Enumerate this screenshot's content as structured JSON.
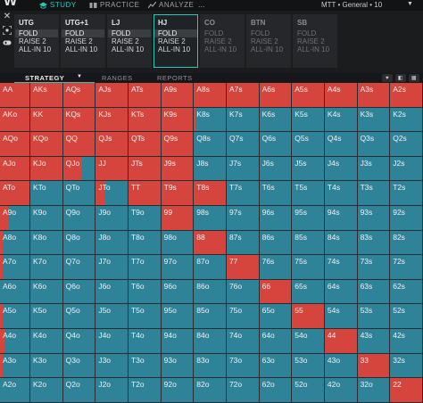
{
  "app": {
    "nav": [
      {
        "label": "STUDY",
        "icon": "study-icon",
        "active": true
      },
      {
        "label": "PRACTICE",
        "icon": "practice-icon",
        "active": false
      },
      {
        "label": "ANALYZE",
        "icon": "analyze-icon",
        "active": false
      }
    ],
    "format": "MTT • General • 10",
    "ellipsis": "..."
  },
  "positions": [
    {
      "name": "UTG",
      "actions": [
        "FOLD",
        "RAISE 2",
        "ALL-IN 10"
      ],
      "selected": 0,
      "state": "played"
    },
    {
      "name": "UTG+1",
      "actions": [
        "FOLD",
        "RAISE 2",
        "ALL-IN 10"
      ],
      "selected": 0,
      "state": "played"
    },
    {
      "name": "LJ",
      "actions": [
        "FOLD",
        "RAISE 2",
        "ALL-IN 10"
      ],
      "selected": 0,
      "state": "played"
    },
    {
      "name": "HJ",
      "actions": [
        "FOLD",
        "RAISE 2",
        "ALL-IN 10"
      ],
      "selected": 0,
      "state": "active"
    },
    {
      "name": "CO",
      "actions": [
        "FOLD",
        "RAISE 2",
        "ALL-IN 10"
      ],
      "selected": -1,
      "state": "inactive"
    },
    {
      "name": "BTN",
      "actions": [
        "FOLD",
        "RAISE 2",
        "ALL-IN 10"
      ],
      "selected": -1,
      "state": "inactive"
    },
    {
      "name": "SB",
      "actions": [
        "FOLD",
        "RAISE 2",
        "ALL-IN 10"
      ],
      "selected": -1,
      "state": "inactive"
    }
  ],
  "tabs": [
    {
      "label": "STRATEGY",
      "active": true
    },
    {
      "label": "RANGES",
      "active": false
    },
    {
      "label": "REPORTS",
      "active": false
    }
  ],
  "colors": {
    "raise": "#d5453e",
    "fold": "#2f8399",
    "accent": "#2fc4b8"
  },
  "hands": [
    [
      "AA",
      "AKs",
      "AQs",
      "AJs",
      "ATs",
      "A9s",
      "A8s",
      "A7s",
      "A6s",
      "A5s",
      "A4s",
      "A3s",
      "A2s"
    ],
    [
      "AKo",
      "KK",
      "KQs",
      "KJs",
      "KTs",
      "K9s",
      "K8s",
      "K7s",
      "K6s",
      "K5s",
      "K4s",
      "K3s",
      "K2s"
    ],
    [
      "AQo",
      "KQo",
      "QQ",
      "QJs",
      "QTs",
      "Q9s",
      "Q8s",
      "Q7s",
      "Q6s",
      "Q5s",
      "Q4s",
      "Q3s",
      "Q2s"
    ],
    [
      "AJo",
      "KJo",
      "QJo",
      "JJ",
      "JTs",
      "J9s",
      "J8s",
      "J7s",
      "J6s",
      "J5s",
      "J4s",
      "J3s",
      "J2s"
    ],
    [
      "ATo",
      "KTo",
      "QTo",
      "JTo",
      "TT",
      "T9s",
      "T8s",
      "T7s",
      "T6s",
      "T5s",
      "T4s",
      "T3s",
      "T2s"
    ],
    [
      "A9o",
      "K9o",
      "Q9o",
      "J9o",
      "T9o",
      "99",
      "98s",
      "97s",
      "96s",
      "95s",
      "94s",
      "93s",
      "92s"
    ],
    [
      "A8o",
      "K8o",
      "Q8o",
      "J8o",
      "T8o",
      "98o",
      "88",
      "87s",
      "86s",
      "85s",
      "84s",
      "83s",
      "82s"
    ],
    [
      "A7o",
      "K7o",
      "Q7o",
      "J7o",
      "T7o",
      "97o",
      "87o",
      "77",
      "76s",
      "75s",
      "74s",
      "73s",
      "72s"
    ],
    [
      "A6o",
      "K6o",
      "Q6o",
      "J6o",
      "T6o",
      "96o",
      "86o",
      "76o",
      "66",
      "65s",
      "64s",
      "63s",
      "62s"
    ],
    [
      "A5o",
      "K5o",
      "Q5o",
      "J5o",
      "T5o",
      "95o",
      "85o",
      "75o",
      "65o",
      "55",
      "54s",
      "53s",
      "52s"
    ],
    [
      "A4o",
      "K4o",
      "Q4o",
      "J4o",
      "T4o",
      "94o",
      "84o",
      "74o",
      "64o",
      "54o",
      "44",
      "43s",
      "42s"
    ],
    [
      "A3o",
      "K3o",
      "Q3o",
      "J3o",
      "T3o",
      "93o",
      "83o",
      "73o",
      "63o",
      "53o",
      "43o",
      "33",
      "32s"
    ],
    [
      "A2o",
      "K2o",
      "Q2o",
      "J2o",
      "T2o",
      "92o",
      "82o",
      "72o",
      "62o",
      "52o",
      "42o",
      "32o",
      "22"
    ]
  ],
  "raise_frequency": [
    [
      1,
      1,
      1,
      1,
      1,
      1,
      1,
      1,
      1,
      1,
      1,
      1,
      1
    ],
    [
      1,
      1,
      1,
      1,
      1,
      1,
      0.05,
      0,
      0,
      0,
      0,
      0,
      0
    ],
    [
      1,
      1,
      1,
      1,
      1,
      1,
      0,
      0,
      0,
      0,
      0,
      0,
      0
    ],
    [
      1,
      1,
      0.6,
      1,
      1,
      1,
      0,
      0,
      0,
      0,
      0,
      0,
      0
    ],
    [
      1,
      0,
      0,
      0.3,
      1,
      1,
      1,
      0,
      0,
      0,
      0,
      0,
      0
    ],
    [
      0.3,
      0,
      0,
      0,
      0,
      1,
      0,
      0,
      0,
      0,
      0,
      0,
      0
    ],
    [
      0.1,
      0,
      0,
      0,
      0,
      0,
      1,
      0,
      0,
      0,
      0,
      0,
      0
    ],
    [
      0.1,
      0,
      0,
      0,
      0,
      0,
      0,
      1,
      0,
      0,
      0,
      0,
      0
    ],
    [
      0,
      0,
      0,
      0,
      0,
      0,
      0,
      0,
      1,
      0,
      0,
      0,
      0
    ],
    [
      0.1,
      0,
      0,
      0,
      0,
      0,
      0,
      0,
      0,
      1,
      0,
      0,
      0
    ],
    [
      0.15,
      0,
      0,
      0,
      0,
      0,
      0,
      0,
      0,
      0,
      1,
      0,
      0
    ],
    [
      0.1,
      0,
      0,
      0,
      0,
      0,
      0,
      0,
      0,
      0,
      0,
      1,
      0
    ],
    [
      0,
      0,
      0,
      0,
      0,
      0,
      0,
      0,
      0,
      0,
      0,
      0,
      1
    ]
  ]
}
